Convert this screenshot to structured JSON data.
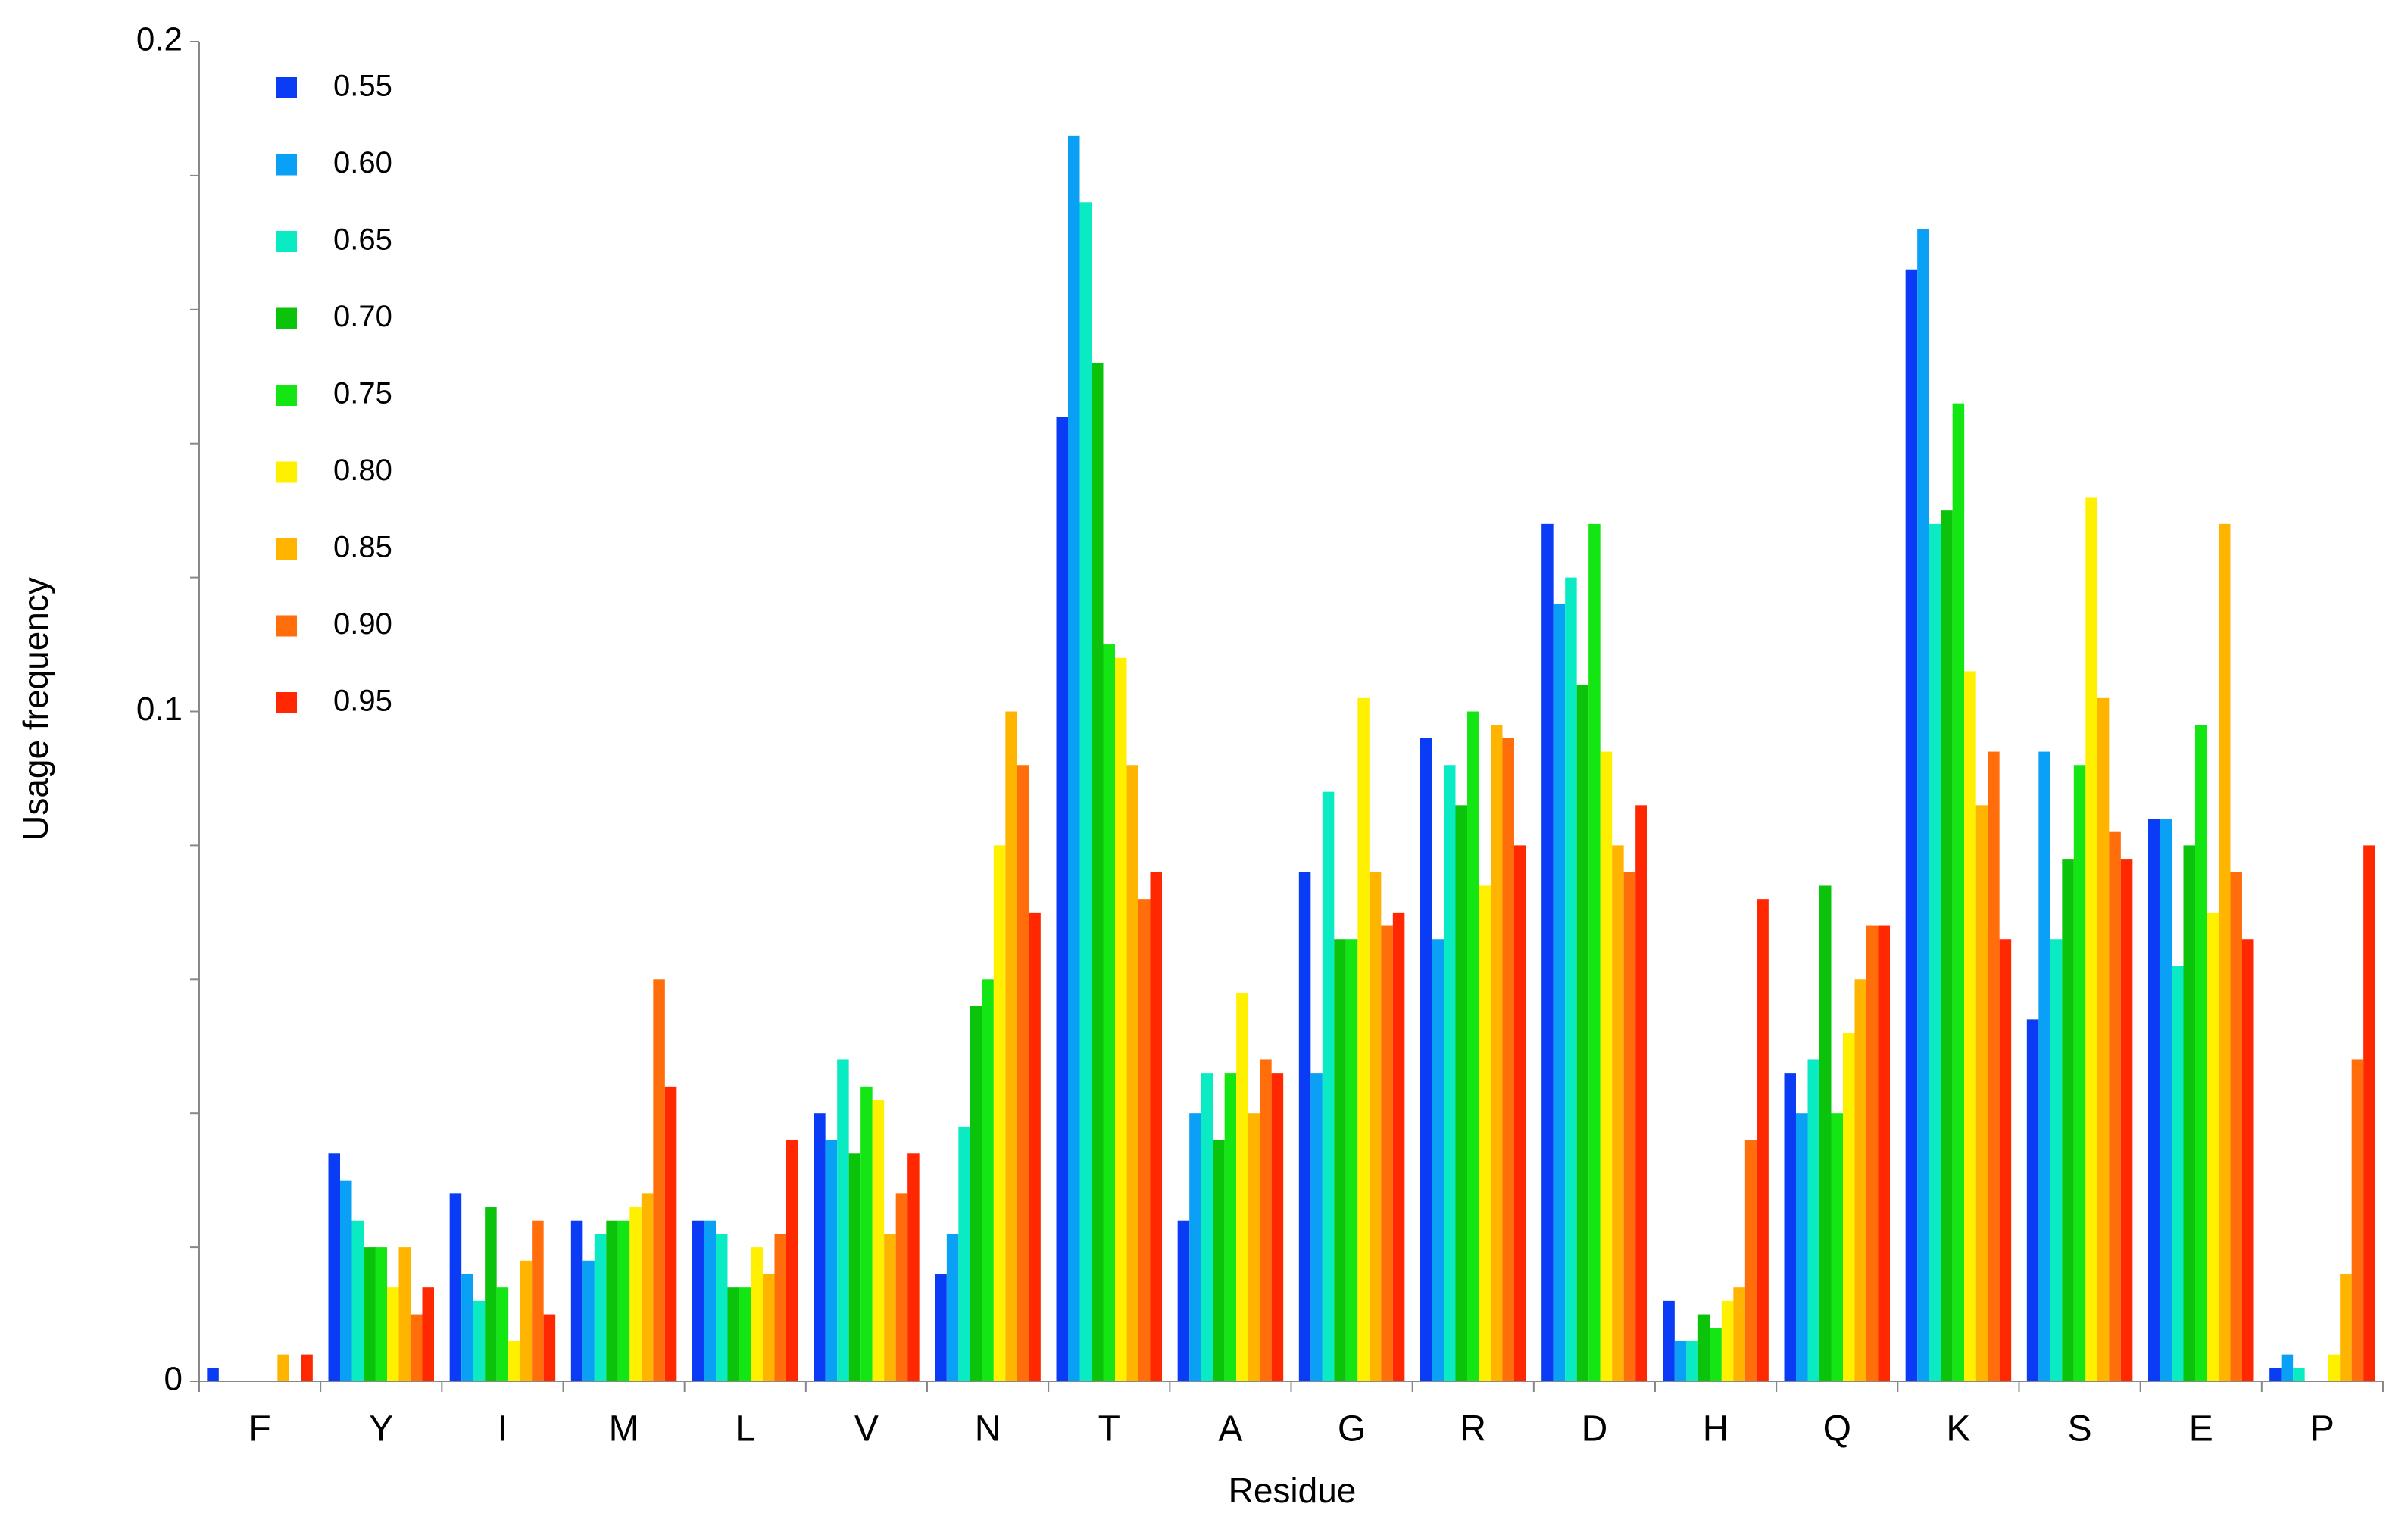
{
  "chart_data": {
    "type": "bar",
    "x_label": "Residue",
    "y_label": "Usage frequency",
    "categories": [
      "F",
      "Y",
      "I",
      "M",
      "L",
      "V",
      "N",
      "T",
      "A",
      "G",
      "R",
      "D",
      "H",
      "Q",
      "K",
      "S",
      "E",
      "P"
    ],
    "ylim": [
      0,
      0.2
    ],
    "yticks": [
      0,
      0.1,
      0.2
    ],
    "minor_yticks": [
      0.02,
      0.04,
      0.06,
      0.08,
      0.12,
      0.14,
      0.16,
      0.18
    ],
    "grid": false,
    "legend_position": "upper left",
    "series": [
      {
        "name": "0.55",
        "color": "#0a3cf5",
        "values": [
          0.002,
          0.034,
          0.028,
          0.024,
          0.024,
          0.04,
          0.016,
          0.144,
          0.024,
          0.076,
          0.096,
          0.128,
          0.012,
          0.046,
          0.166,
          0.054,
          0.084,
          0.002
        ]
      },
      {
        "name": "0.60",
        "color": "#0aa0f5",
        "values": [
          0,
          0.03,
          0.016,
          0.018,
          0.024,
          0.036,
          0.022,
          0.186,
          0.04,
          0.046,
          0.066,
          0.116,
          0.006,
          0.04,
          0.172,
          0.094,
          0.084,
          0.004
        ]
      },
      {
        "name": "0.65",
        "color": "#0aebc3",
        "values": [
          0,
          0.024,
          0.012,
          0.022,
          0.022,
          0.048,
          0.038,
          0.176,
          0.046,
          0.088,
          0.092,
          0.12,
          0.006,
          0.048,
          0.128,
          0.066,
          0.062,
          0.002
        ]
      },
      {
        "name": "0.70",
        "color": "#0ac30a",
        "values": [
          0,
          0.02,
          0.026,
          0.024,
          0.014,
          0.034,
          0.056,
          0.152,
          0.036,
          0.066,
          0.086,
          0.104,
          0.01,
          0.074,
          0.13,
          0.078,
          0.08,
          0
        ]
      },
      {
        "name": "0.75",
        "color": "#14e614",
        "values": [
          0,
          0.02,
          0.014,
          0.024,
          0.014,
          0.044,
          0.06,
          0.11,
          0.046,
          0.066,
          0.1,
          0.128,
          0.008,
          0.04,
          0.146,
          0.092,
          0.098,
          0
        ]
      },
      {
        "name": "0.80",
        "color": "#fff000",
        "values": [
          0,
          0.014,
          0.006,
          0.026,
          0.02,
          0.042,
          0.08,
          0.108,
          0.058,
          0.102,
          0.074,
          0.094,
          0.012,
          0.052,
          0.106,
          0.132,
          0.07,
          0.004
        ]
      },
      {
        "name": "0.85",
        "color": "#ffb400",
        "values": [
          0.004,
          0.02,
          0.018,
          0.028,
          0.016,
          0.022,
          0.1,
          0.092,
          0.04,
          0.076,
          0.098,
          0.08,
          0.014,
          0.06,
          0.086,
          0.102,
          0.128,
          0.016
        ]
      },
      {
        "name": "0.90",
        "color": "#ff6e0a",
        "values": [
          0,
          0.01,
          0.024,
          0.06,
          0.022,
          0.028,
          0.092,
          0.072,
          0.048,
          0.068,
          0.096,
          0.076,
          0.036,
          0.068,
          0.094,
          0.082,
          0.076,
          0.048
        ]
      },
      {
        "name": "0.95",
        "color": "#ff2800",
        "values": [
          0.004,
          0.014,
          0.01,
          0.044,
          0.036,
          0.034,
          0.07,
          0.076,
          0.046,
          0.07,
          0.08,
          0.086,
          0.072,
          0.068,
          0.066,
          0.078,
          0.066,
          0.08
        ]
      }
    ]
  }
}
